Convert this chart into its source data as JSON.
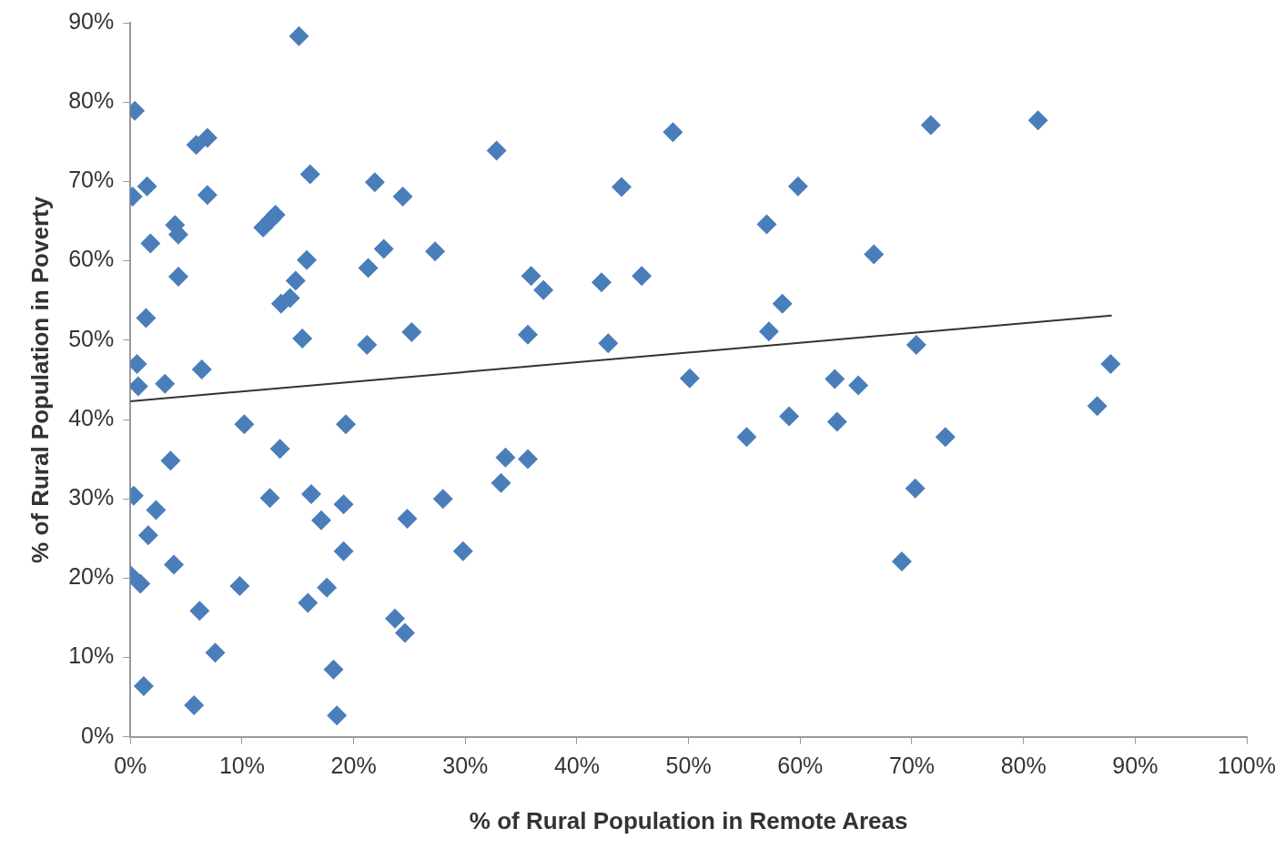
{
  "chart_data": {
    "type": "scatter",
    "xlabel": "% of Rural Population in Remote Areas",
    "ylabel": "% of Rural Population in Poverty",
    "xlim": [
      0,
      100
    ],
    "ylim": [
      0,
      90
    ],
    "xticks": [
      {
        "value": 0,
        "label": "0%"
      },
      {
        "value": 10,
        "label": "10%"
      },
      {
        "value": 20,
        "label": "20%"
      },
      {
        "value": 30,
        "label": "30%"
      },
      {
        "value": 40,
        "label": "40%"
      },
      {
        "value": 50,
        "label": "50%"
      },
      {
        "value": 60,
        "label": "60%"
      },
      {
        "value": 70,
        "label": "70%"
      },
      {
        "value": 80,
        "label": "80%"
      },
      {
        "value": 90,
        "label": "90%"
      },
      {
        "value": 100,
        "label": "100%"
      }
    ],
    "yticks": [
      {
        "value": 0,
        "label": "0%"
      },
      {
        "value": 10,
        "label": "10%"
      },
      {
        "value": 20,
        "label": "20%"
      },
      {
        "value": 30,
        "label": "30%"
      },
      {
        "value": 40,
        "label": "40%"
      },
      {
        "value": 50,
        "label": "50%"
      },
      {
        "value": 60,
        "label": "60%"
      },
      {
        "value": 70,
        "label": "70%"
      },
      {
        "value": 80,
        "label": "80%"
      },
      {
        "value": 90,
        "label": "90%"
      }
    ],
    "grid": false,
    "legend": false,
    "marker": "diamond",
    "series": [
      {
        "type": "scatter",
        "color": "#4a7ebb",
        "x": [
          15.1,
          0.4,
          0.2,
          1.5,
          1.8,
          1.4,
          0.6,
          0.7,
          3.1,
          0.3,
          2.3,
          1.6,
          0,
          0.9,
          3.9,
          3.6,
          1.2,
          4.0,
          4.3,
          4.3,
          6.4,
          5.9,
          6.9,
          6.9,
          6.2,
          7.6,
          5.7,
          10.2,
          9.8,
          12.5,
          13.4,
          11.9,
          12.6,
          13.0,
          13.5,
          14.3,
          14.8,
          15.4,
          16.1,
          15.8,
          16.2,
          17.1,
          15.9,
          17.6,
          18.2,
          18.5,
          19.1,
          19.1,
          19.3,
          21.3,
          21.2,
          21.9,
          22.7,
          24.4,
          25.2,
          24.8,
          23.7,
          24.6,
          27.3,
          28.0,
          29.8,
          32.8,
          35.9,
          37.0,
          35.6,
          33.6,
          33.2,
          35.6,
          42.2,
          42.8,
          44.0,
          45.8,
          48.6,
          50.1,
          55.2,
          57.0,
          58.4,
          57.2,
          59.0,
          59.8,
          63.1,
          65.2,
          63.3,
          66.6,
          70.4,
          70.3,
          69.1,
          73.0,
          71.7,
          81.3,
          86.6,
          87.8
        ],
        "values": [
          88.3,
          78.9,
          68.1,
          69.4,
          62.2,
          52.8,
          47.0,
          44.2,
          44.5,
          30.4,
          28.6,
          25.4,
          20.4,
          19.3,
          21.7,
          34.8,
          6.4,
          64.5,
          63.3,
          58.0,
          46.3,
          74.6,
          75.5,
          68.3,
          15.9,
          10.6,
          4.0,
          39.4,
          19.0,
          30.1,
          36.3,
          64.2,
          65.2,
          65.8,
          54.6,
          55.3,
          57.5,
          50.2,
          70.9,
          60.1,
          30.6,
          27.3,
          16.9,
          18.8,
          8.5,
          2.7,
          29.3,
          23.4,
          39.4,
          59.1,
          49.4,
          69.9,
          61.5,
          68.1,
          51.0,
          27.5,
          14.9,
          13.1,
          61.2,
          30.0,
          23.4,
          73.9,
          58.1,
          56.3,
          50.7,
          35.2,
          32.0,
          35.0,
          57.3,
          49.6,
          69.3,
          58.1,
          76.2,
          45.2,
          37.8,
          64.6,
          54.6,
          51.1,
          40.4,
          69.4,
          45.1,
          44.3,
          39.7,
          60.8,
          49.4,
          31.3,
          22.1,
          37.8,
          77.1,
          77.7,
          41.7,
          47.0
        ]
      },
      {
        "type": "line",
        "color": "#333333",
        "marker": "none",
        "line_style": "solid",
        "x": [
          0,
          87.9
        ],
        "values": [
          42.3,
          53.1
        ]
      }
    ]
  }
}
